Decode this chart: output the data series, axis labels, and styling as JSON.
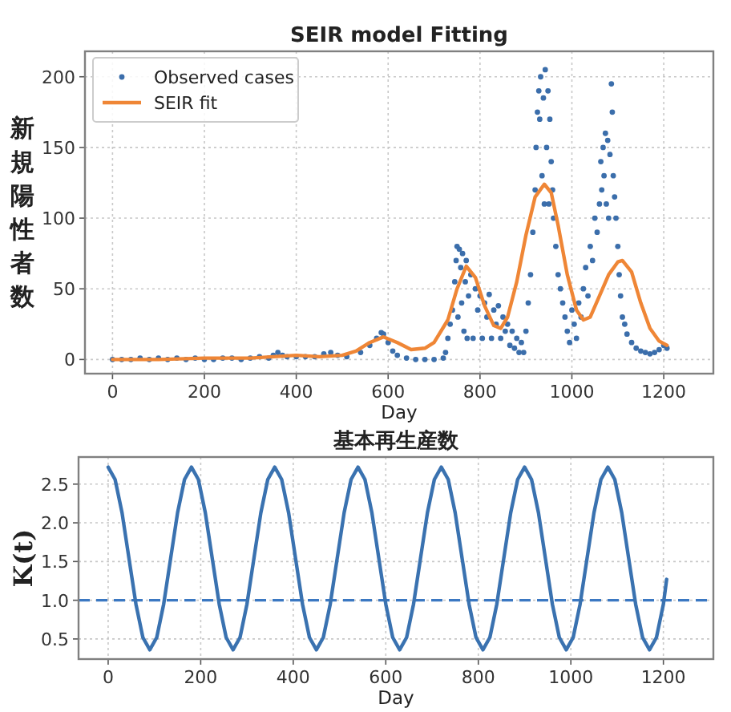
{
  "chart_data": [
    {
      "type": "scatter",
      "title": "SEIR model Fitting",
      "xlabel": "Day",
      "ylabel": "新規陽性者数",
      "xlim": [
        -60,
        1308
      ],
      "ylim": [
        -10,
        218
      ],
      "xticks": [
        0,
        200,
        400,
        600,
        800,
        1000,
        1200
      ],
      "yticks": [
        0,
        50,
        100,
        150,
        200
      ],
      "grid": true,
      "legend": "top left",
      "series": [
        {
          "name": "Observed cases",
          "marker": "circle",
          "color": "#3b6eab",
          "x": [
            0,
            20,
            40,
            60,
            80,
            100,
            120,
            140,
            160,
            180,
            200,
            220,
            240,
            260,
            280,
            300,
            320,
            340,
            350,
            360,
            370,
            380,
            400,
            420,
            440,
            460,
            475,
            490,
            510,
            540,
            560,
            575,
            585,
            590,
            600,
            610,
            620,
            640,
            660,
            680,
            700,
            720,
            725,
            730,
            735,
            740,
            745,
            748,
            750,
            752,
            755,
            758,
            760,
            762,
            765,
            768,
            770,
            772,
            775,
            780,
            785,
            790,
            795,
            800,
            805,
            810,
            815,
            820,
            825,
            830,
            835,
            840,
            845,
            850,
            855,
            860,
            865,
            870,
            875,
            880,
            885,
            890,
            895,
            900,
            905,
            910,
            915,
            920,
            922,
            925,
            928,
            930,
            932,
            935,
            938,
            940,
            942,
            945,
            948,
            950,
            952,
            955,
            958,
            960,
            965,
            970,
            975,
            980,
            985,
            990,
            995,
            1000,
            1005,
            1010,
            1015,
            1020,
            1025,
            1030,
            1035,
            1040,
            1045,
            1050,
            1055,
            1060,
            1063,
            1065,
            1068,
            1070,
            1073,
            1075,
            1078,
            1080,
            1083,
            1086,
            1088,
            1090,
            1093,
            1096,
            1100,
            1103,
            1106,
            1110,
            1115,
            1120,
            1130,
            1140,
            1150,
            1160,
            1170,
            1180,
            1190,
            1200,
            1207
          ],
          "values": [
            0,
            0,
            0,
            1,
            0,
            1,
            0,
            1,
            0,
            1,
            0,
            0,
            1,
            1,
            0,
            1,
            2,
            1,
            3,
            5,
            3,
            2,
            2,
            2,
            2,
            4,
            5,
            3,
            2,
            5,
            10,
            15,
            19,
            18,
            12,
            6,
            3,
            1,
            0,
            0,
            0,
            1,
            5,
            15,
            25,
            35,
            55,
            70,
            80,
            30,
            78,
            65,
            40,
            75,
            20,
            55,
            70,
            15,
            45,
            60,
            15,
            50,
            35,
            45,
            15,
            40,
            30,
            46,
            15,
            35,
            25,
            38,
            15,
            30,
            20,
            25,
            10,
            20,
            8,
            15,
            5,
            12,
            5,
            20,
            40,
            60,
            90,
            120,
            150,
            175,
            190,
            170,
            200,
            130,
            185,
            110,
            205,
            150,
            190,
            110,
            170,
            140,
            120,
            100,
            80,
            60,
            50,
            40,
            30,
            20,
            12,
            35,
            25,
            15,
            40,
            30,
            50,
            65,
            45,
            80,
            70,
            100,
            90,
            110,
            140,
            120,
            150,
            130,
            160,
            110,
            155,
            100,
            145,
            195,
            175,
            130,
            115,
            100,
            80,
            60,
            45,
            30,
            25,
            18,
            12,
            8,
            6,
            5,
            4,
            5,
            7,
            10,
            8
          ]
        },
        {
          "name": "SEIR fit",
          "type": "line",
          "color": "#ef8636",
          "x": [
            0,
            100,
            200,
            300,
            400,
            450,
            500,
            530,
            560,
            590,
            620,
            650,
            680,
            700,
            730,
            750,
            770,
            790,
            810,
            830,
            845,
            860,
            880,
            900,
            920,
            940,
            955,
            970,
            990,
            1010,
            1025,
            1040,
            1060,
            1080,
            1100,
            1110,
            1130,
            1150,
            1170,
            1190,
            1207
          ],
          "values": [
            0,
            0,
            1,
            1,
            3,
            2,
            3,
            6,
            12,
            16,
            12,
            7,
            8,
            12,
            28,
            50,
            66,
            58,
            38,
            24,
            22,
            30,
            55,
            88,
            115,
            124,
            118,
            95,
            60,
            35,
            28,
            30,
            45,
            60,
            69,
            70,
            62,
            40,
            22,
            13,
            10
          ]
        }
      ]
    },
    {
      "type": "line",
      "title": "基本再生産数",
      "xlabel": "Day",
      "ylabel": "K(t)",
      "xlim": [
        -64,
        1308
      ],
      "ylim": [
        0.24,
        2.85
      ],
      "xticks": [
        0,
        200,
        400,
        600,
        800,
        1000,
        1200
      ],
      "yticks": [
        0.5,
        {
          "value": 1,
          "label": "1.0"
        },
        1.5,
        {
          "value": 2,
          "label": "2.0"
        },
        2.5
      ],
      "grid": true,
      "ref_lines": [
        {
          "axis": "y",
          "value": 1.0,
          "color": "#3b78c2",
          "line_style": "dashed"
        }
      ],
      "series": [
        {
          "color": "#3a72b0",
          "x": [
            0,
            15,
            30,
            45,
            60,
            75,
            90,
            105,
            120,
            135,
            150,
            165,
            180,
            195,
            210,
            225,
            240,
            255,
            270,
            285,
            300,
            315,
            330,
            345,
            360,
            375,
            390,
            405,
            420,
            435,
            450,
            465,
            480,
            495,
            510,
            525,
            540,
            555,
            570,
            585,
            600,
            615,
            630,
            645,
            660,
            675,
            690,
            705,
            720,
            735,
            750,
            765,
            780,
            795,
            810,
            825,
            840,
            855,
            870,
            885,
            900,
            915,
            930,
            945,
            960,
            975,
            990,
            1005,
            1020,
            1035,
            1050,
            1065,
            1080,
            1095,
            1110,
            1125,
            1140,
            1155,
            1170,
            1185,
            1200,
            1207
          ],
          "values": [
            2.72,
            2.56,
            2.13,
            1.54,
            0.95,
            0.52,
            0.36,
            0.52,
            0.95,
            1.54,
            2.13,
            2.56,
            2.72,
            2.56,
            2.13,
            1.54,
            0.95,
            0.52,
            0.36,
            0.52,
            0.95,
            1.54,
            2.13,
            2.56,
            2.72,
            2.56,
            2.13,
            1.54,
            0.95,
            0.52,
            0.36,
            0.52,
            0.95,
            1.54,
            2.13,
            2.56,
            2.72,
            2.56,
            2.13,
            1.54,
            0.95,
            0.52,
            0.36,
            0.52,
            0.95,
            1.54,
            2.13,
            2.56,
            2.72,
            2.56,
            2.13,
            1.54,
            0.95,
            0.52,
            0.36,
            0.52,
            0.95,
            1.54,
            2.13,
            2.56,
            2.72,
            2.56,
            2.13,
            1.54,
            0.95,
            0.52,
            0.36,
            0.52,
            0.95,
            1.54,
            2.13,
            2.56,
            2.72,
            2.56,
            2.13,
            1.54,
            0.95,
            0.52,
            0.36,
            0.52,
            0.95,
            1.27
          ]
        }
      ]
    }
  ]
}
